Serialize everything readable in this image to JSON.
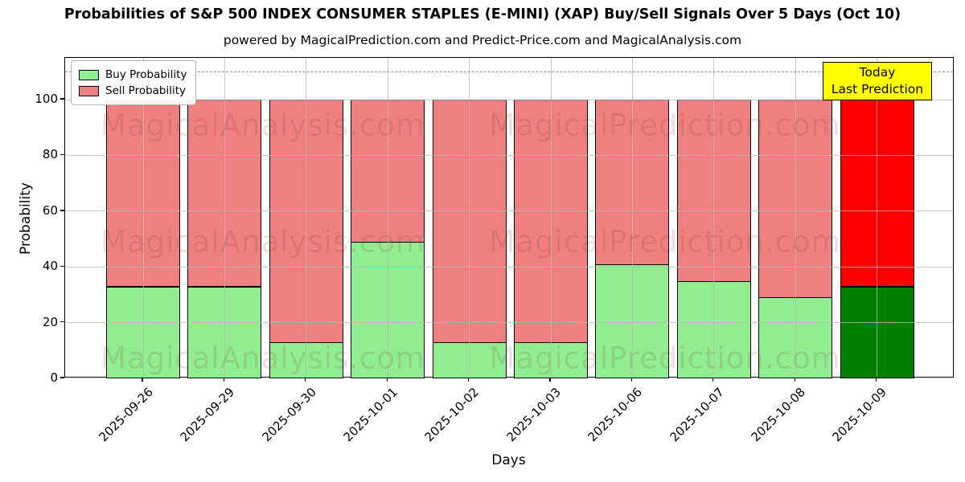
{
  "title": "Probabilities of S&P 500 INDEX CONSUMER STAPLES (E-MINI) (XAP) Buy/Sell Signals Over 5 Days (Oct 10)",
  "subtitle": "powered by MagicalPrediction.com and Predict-Price.com and MagicalAnalysis.com",
  "watermarks": {
    "left": "MagicalAnalysis.com",
    "right": "MagicalPrediction.com"
  },
  "annotation": {
    "line1": "Today",
    "line2": "Last Prediction",
    "bg_color": "#ffff00"
  },
  "legend": {
    "items": [
      {
        "label": "Buy Probability",
        "color": "#90EE90"
      },
      {
        "label": "Sell Probability",
        "color": "#F08080"
      }
    ]
  },
  "axes": {
    "ylabel": "Probability",
    "xlabel": "Days",
    "yticks": [
      0,
      20,
      40,
      60,
      80,
      100
    ],
    "ylim": [
      0,
      115
    ],
    "dashed_line_y": 110,
    "grid": true
  },
  "chart_data": {
    "type": "bar",
    "stacked": true,
    "title": "Probabilities of S&P 500 INDEX CONSUMER STAPLES (E-MINI) (XAP) Buy/Sell Signals Over 5 Days (Oct 10)",
    "xlabel": "Days",
    "ylabel": "Probability",
    "ylim": [
      0,
      115
    ],
    "categories": [
      "2025-09-26",
      "2025-09-29",
      "2025-09-30",
      "2025-10-01",
      "2025-10-02",
      "2025-10-03",
      "2025-10-06",
      "2025-10-07",
      "2025-10-08",
      "2025-10-09"
    ],
    "series": [
      {
        "name": "Buy Probability",
        "color": "#90EE90",
        "today_color": "#008000",
        "values": [
          33,
          33,
          13,
          49,
          13,
          13,
          41,
          35,
          29,
          33
        ]
      },
      {
        "name": "Sell Probability",
        "color": "#F08080",
        "today_color": "#FF0000",
        "values": [
          67,
          67,
          87,
          51,
          87,
          87,
          59,
          65,
          71,
          67
        ]
      }
    ],
    "today_index": 9,
    "legend_position": "upper left"
  }
}
